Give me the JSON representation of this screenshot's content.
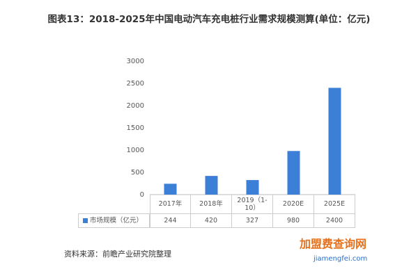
{
  "chart_data": {
    "type": "bar",
    "title": "图表13：2018-2025年中国电动汽车充电桩行业需求规模测算(单位：亿元)",
    "categories": [
      "2017年",
      "2018年",
      "2019（1-10）",
      "2020E",
      "2025E"
    ],
    "series": [
      {
        "name": "市场规模（亿元）",
        "color": "#3b7fd6",
        "values": [
          244,
          420,
          327,
          980,
          2400
        ]
      }
    ],
    "ylim": [
      0,
      3000
    ],
    "yticks": [
      0,
      500,
      1000,
      1500,
      2000,
      2500,
      3000
    ],
    "grid": false,
    "source": "资料来源：前瞻产业研究院整理",
    "logo": {
      "name": "加盟费查询网",
      "url": "jiamengfei.com"
    }
  }
}
